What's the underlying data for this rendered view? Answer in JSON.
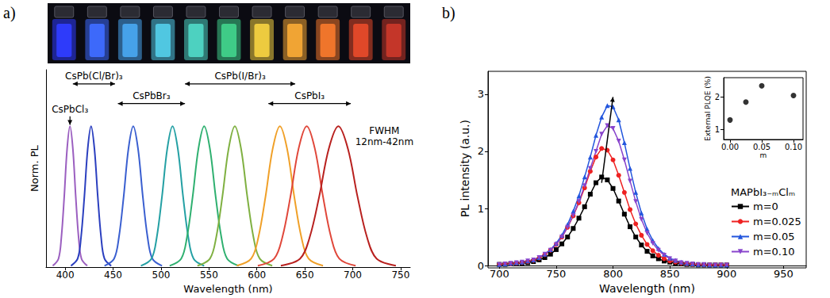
{
  "chart_data": [
    {
      "type": "line",
      "panel_label": "a)",
      "x_label": "Wavelength (nm)",
      "y_label": "Norm. PL",
      "xlim": [
        380,
        760
      ],
      "xticks": [
        400,
        450,
        500,
        550,
        600,
        650,
        700,
        750
      ],
      "ylim": [
        0,
        1.4
      ],
      "tick_labels": "x",
      "grid": false,
      "series": [
        {
          "color": "#9b5fc0",
          "x": [
            387,
            393,
            396,
            399,
            402,
            405,
            408,
            411,
            414,
            417,
            423
          ],
          "values": [
            0.01,
            0.06,
            0.21,
            0.5,
            0.84,
            1,
            0.84,
            0.5,
            0.21,
            0.06,
            0.01
          ]
        },
        {
          "color": "#2b3fbf",
          "x": [
            406,
            413,
            416.5,
            420,
            423.5,
            427,
            430.5,
            434,
            437.5,
            441,
            448
          ],
          "values": [
            0.01,
            0.06,
            0.21,
            0.5,
            0.84,
            1,
            0.84,
            0.5,
            0.21,
            0.06,
            0.01
          ]
        },
        {
          "color": "#3a5fd0",
          "x": [
            441,
            451,
            456,
            461,
            466,
            471,
            476,
            481,
            486,
            491,
            501
          ],
          "values": [
            0.01,
            0.06,
            0.21,
            0.5,
            0.84,
            1,
            0.84,
            0.5,
            0.21,
            0.06,
            0.01
          ]
        },
        {
          "color": "#24a0a4",
          "x": [
            479,
            490,
            495.5,
            501,
            506.5,
            512,
            517.5,
            523,
            528.5,
            534,
            545
          ],
          "values": [
            0.01,
            0.06,
            0.21,
            0.5,
            0.84,
            1,
            0.84,
            0.5,
            0.21,
            0.06,
            0.01
          ]
        },
        {
          "color": "#2fb070",
          "x": [
            509,
            521,
            527,
            533,
            539,
            545,
            551,
            557,
            563,
            569,
            581
          ],
          "values": [
            0.01,
            0.06,
            0.21,
            0.5,
            0.84,
            1,
            0.84,
            0.5,
            0.21,
            0.06,
            0.01
          ]
        },
        {
          "color": "#7fb041",
          "x": [
            538,
            551,
            557.5,
            564,
            570.5,
            577,
            583.5,
            590,
            596.5,
            603,
            616
          ],
          "values": [
            0.01,
            0.06,
            0.21,
            0.5,
            0.84,
            1,
            0.84,
            0.5,
            0.21,
            0.06,
            0.01
          ]
        },
        {
          "color": "#f0a028",
          "x": [
            579,
            594,
            601.5,
            609,
            616.5,
            624,
            631.5,
            639,
            646.5,
            654,
            669
          ],
          "values": [
            0.01,
            0.06,
            0.21,
            0.5,
            0.84,
            1,
            0.84,
            0.5,
            0.21,
            0.06,
            0.01
          ]
        },
        {
          "color": "#e0473a",
          "x": [
            601,
            618,
            626.5,
            635,
            643.5,
            652,
            660.5,
            669,
            677.5,
            686,
            703
          ],
          "values": [
            0.01,
            0.06,
            0.21,
            0.5,
            0.84,
            1,
            0.84,
            0.5,
            0.21,
            0.06,
            0.01
          ]
        },
        {
          "color": "#b8201e",
          "x": [
            625,
            645,
            655,
            665,
            675,
            685,
            695,
            705,
            715,
            725,
            745
          ],
          "values": [
            0.01,
            0.06,
            0.21,
            0.5,
            0.84,
            1,
            0.84,
            0.5,
            0.21,
            0.06,
            0.01
          ]
        }
      ],
      "annotations": [
        {
          "text": "CsPbCl₃",
          "x": 405,
          "y": 1.12,
          "arrow_to": 1.01
        },
        {
          "text": "CsPb(Cl/Br)₃",
          "x": [
            408,
            452
          ],
          "y": 1.3
        },
        {
          "text": "CsPbBr₃",
          "x": [
            455,
            525
          ],
          "y": 1.16
        },
        {
          "text": "CsPb(I/Br)₃",
          "x": [
            525,
            640
          ],
          "y": 1.3
        },
        {
          "text": "CsPbI₃",
          "x": [
            612,
            698
          ],
          "y": 1.16
        },
        {
          "text": "FWHM\n12nm-42nm",
          "x": 733,
          "y": 0.93
        }
      ]
    },
    {
      "type": "line",
      "panel_label": "b)",
      "x_label": "Wavelength (nm)",
      "y_label": "PL intensity (a.u.)",
      "xlim": [
        690,
        970
      ],
      "xticks": [
        700,
        750,
        800,
        850,
        900,
        950
      ],
      "ylim": [
        0,
        3.4
      ],
      "yticks": [
        0,
        1,
        2,
        3
      ],
      "grid": false,
      "legend": "lower right",
      "legend_title": "MAPbI₃₋ₘClₘ",
      "x": [
        700,
        705,
        710,
        715,
        720,
        725,
        730,
        735,
        740,
        745,
        750,
        755,
        760,
        765,
        770,
        775,
        780,
        785,
        790,
        795,
        800,
        805,
        810,
        815,
        820,
        825,
        830,
        835,
        840,
        845,
        850,
        855,
        860,
        865,
        870,
        875,
        880,
        885,
        890,
        895,
        900
      ],
      "series": [
        {
          "name": "m=0",
          "color": "#000000",
          "marker": "square",
          "values": [
            0.02,
            0.02,
            0.03,
            0.03,
            0.04,
            0.05,
            0.07,
            0.1,
            0.14,
            0.2,
            0.28,
            0.38,
            0.5,
            0.65,
            0.83,
            1.03,
            1.25,
            1.45,
            1.55,
            1.5,
            1.35,
            1.13,
            0.9,
            0.68,
            0.5,
            0.36,
            0.25,
            0.17,
            0.12,
            0.08,
            0.06,
            0.04,
            0.03,
            0.02,
            0.02,
            0.01,
            0.01,
            0.01,
            0.01,
            0.01,
            0.01
          ]
        },
        {
          "name": "m=0.025",
          "color": "#ee2222",
          "marker": "circle",
          "values": [
            0.02,
            0.03,
            0.03,
            0.04,
            0.05,
            0.07,
            0.09,
            0.13,
            0.19,
            0.27,
            0.37,
            0.5,
            0.67,
            0.87,
            1.1,
            1.36,
            1.65,
            1.9,
            2.05,
            2.02,
            1.85,
            1.58,
            1.28,
            0.98,
            0.73,
            0.53,
            0.37,
            0.26,
            0.18,
            0.12,
            0.08,
            0.06,
            0.04,
            0.03,
            0.02,
            0.02,
            0.01,
            0.01,
            0.01,
            0.01,
            0.01
          ]
        },
        {
          "name": "m=0.05",
          "color": "#2255dd",
          "marker": "triangle",
          "values": [
            0.02,
            0.03,
            0.04,
            0.05,
            0.06,
            0.08,
            0.1,
            0.14,
            0.2,
            0.28,
            0.39,
            0.53,
            0.72,
            0.95,
            1.22,
            1.55,
            1.9,
            2.28,
            2.6,
            2.8,
            2.78,
            2.55,
            2.15,
            1.7,
            1.28,
            0.92,
            0.64,
            0.44,
            0.3,
            0.2,
            0.13,
            0.09,
            0.06,
            0.04,
            0.03,
            0.02,
            0.02,
            0.01,
            0.01,
            0.01,
            0.01
          ]
        },
        {
          "name": "m=0.10",
          "color": "#8844cc",
          "marker": "triangle-down",
          "values": [
            0.02,
            0.03,
            0.04,
            0.05,
            0.06,
            0.08,
            0.1,
            0.14,
            0.2,
            0.27,
            0.37,
            0.5,
            0.67,
            0.88,
            1.12,
            1.4,
            1.7,
            2.0,
            2.3,
            2.45,
            2.4,
            2.18,
            1.85,
            1.48,
            1.12,
            0.81,
            0.57,
            0.39,
            0.27,
            0.18,
            0.12,
            0.08,
            0.05,
            0.04,
            0.03,
            0.02,
            0.02,
            0.01,
            0.01,
            0.01,
            0.01
          ]
        }
      ],
      "arrows": [
        {
          "x": [
            790,
            800
          ],
          "y": [
            1.45,
            2.95
          ]
        }
      ]
    },
    {
      "type": "scatter",
      "x_label": "m",
      "y_label": "External PLQE (%)",
      "xlim": [
        -0.01,
        0.115
      ],
      "xticks": [
        {
          "value": 0,
          "label": "0.00"
        },
        {
          "value": 0.05,
          "label": "0.05"
        },
        {
          "value": 0.1,
          "label": "0.10"
        }
      ],
      "ylim": [
        0.7,
        2.6
      ],
      "yticks": [
        1,
        2
      ],
      "grid": false,
      "x": [
        0,
        0.025,
        0.05,
        0.1
      ],
      "values": [
        1.3,
        1.85,
        2.35,
        2.05
      ],
      "color": "#000000",
      "marker": "circle"
    }
  ]
}
